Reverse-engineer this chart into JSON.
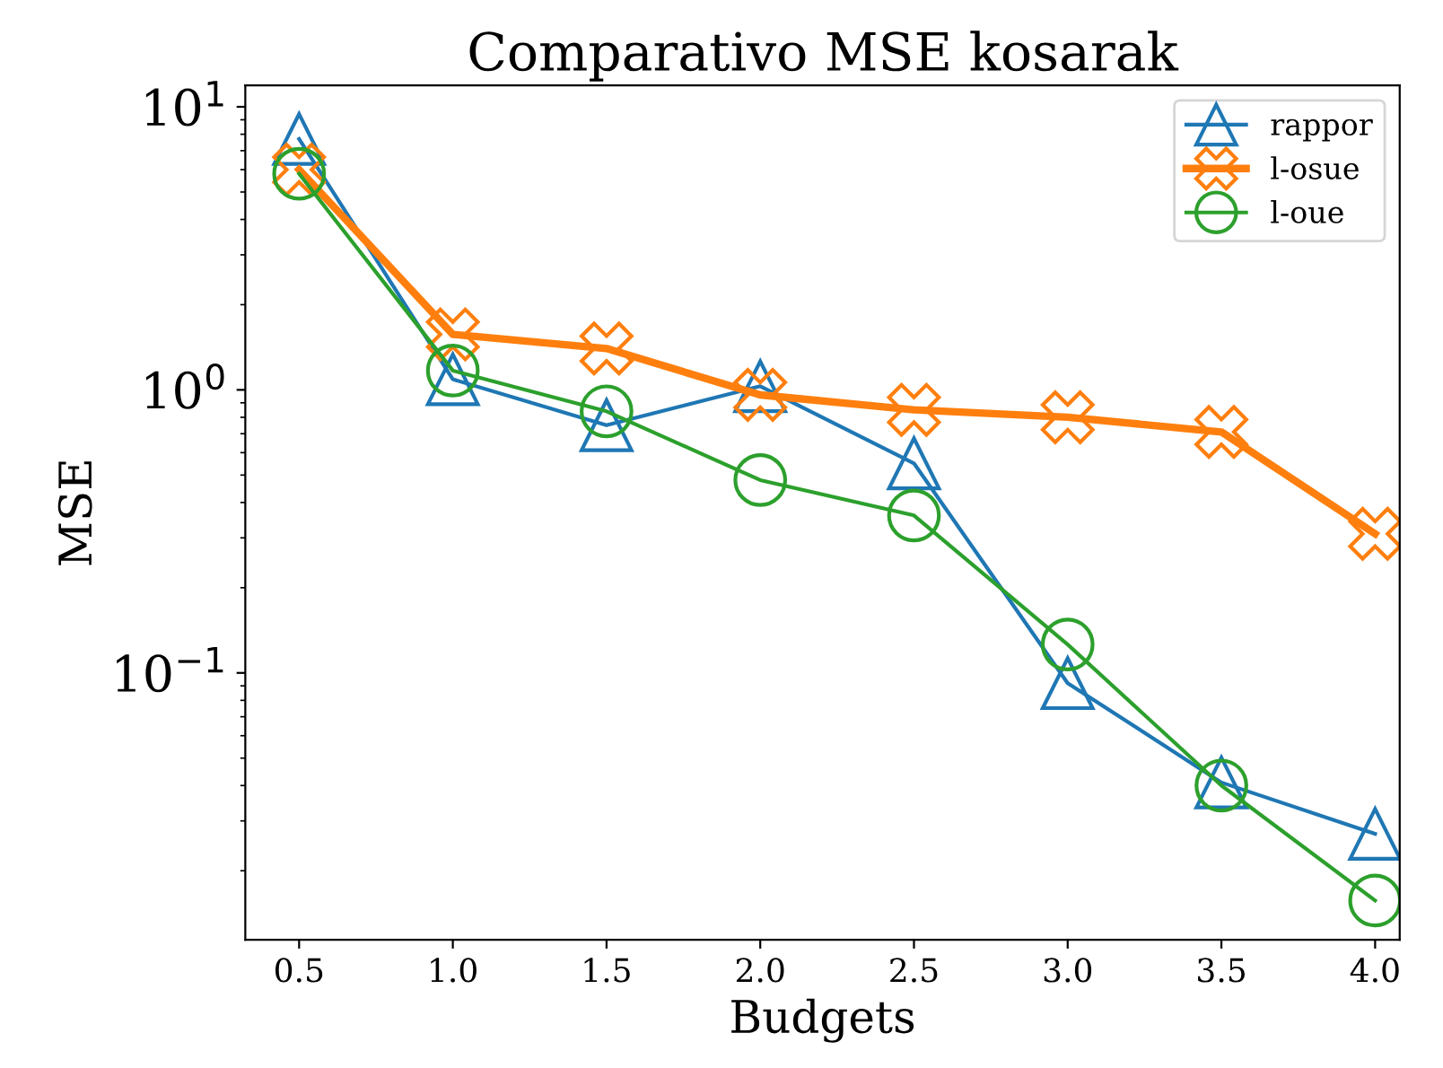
{
  "chart_data": {
    "type": "line",
    "title": "Comparativo MSE kosarak",
    "xlabel": "Budgets",
    "ylabel": "MSE",
    "x": [
      0.5,
      1.0,
      1.5,
      2.0,
      2.5,
      3.0,
      3.5,
      4.0
    ],
    "series": [
      {
        "name": "rappor",
        "color": "#1f77b4",
        "marker": "triangle",
        "values": [
          7.7,
          1.09,
          0.75,
          1.03,
          0.55,
          0.092,
          0.041,
          0.027
        ]
      },
      {
        "name": "l-osue",
        "color": "#ff7f0e",
        "marker": "cross",
        "values": [
          6.0,
          1.57,
          1.4,
          0.96,
          0.85,
          0.8,
          0.71,
          0.31
        ]
      },
      {
        "name": "l-oue",
        "color": "#2ca02c",
        "marker": "circle",
        "values": [
          5.8,
          1.17,
          0.84,
          0.48,
          0.36,
          0.126,
          0.04,
          0.0157
        ]
      }
    ],
    "log": "y",
    "xlim": [
      0.325,
      4.08
    ],
    "ylim": [
      0.0114,
      11.9
    ],
    "xticks": [
      0.5,
      {
        "value": 1,
        "label": "1.0"
      },
      1.5,
      {
        "value": 2,
        "label": "2.0"
      },
      2.5,
      {
        "value": 3,
        "label": "3.0"
      },
      3.5,
      {
        "value": 4,
        "label": "4.0"
      }
    ],
    "yticks": [
      {
        "value": 0.1,
        "label": "10$^{−1}$"
      },
      {
        "value": 1,
        "label": "10$^{0}$"
      },
      {
        "value": 10,
        "label": "10$^{1}$"
      }
    ],
    "legend": "top right",
    "grid": false,
    "line_style": "solid"
  }
}
